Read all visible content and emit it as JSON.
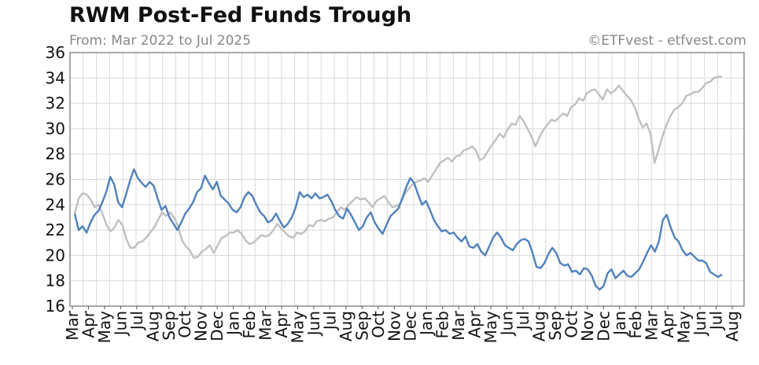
{
  "chart_data": {
    "type": "line",
    "title": "RWM Post-Fed Funds Trough",
    "subtitle": "From: Mar 2022 to Jul 2025",
    "credit": "©ETFvest - etfvest.com",
    "xlabel": "",
    "ylabel": "",
    "ylim": [
      16,
      36
    ],
    "yticks": [
      16,
      18,
      20,
      22,
      24,
      26,
      28,
      30,
      32,
      34,
      36
    ],
    "grid": true,
    "x_ticks": [
      "Mar",
      "Apr",
      "May",
      "Jun",
      "Jul",
      "Aug",
      "Sep",
      "Oct",
      "Nov",
      "Dec",
      "Jan",
      "Feb",
      "Mar",
      "Apr",
      "May",
      "Jun",
      "Jul",
      "Aug",
      "Sep",
      "Oct",
      "Nov",
      "Dec",
      "Jan",
      "Feb",
      "Mar",
      "Apr",
      "May",
      "Jun",
      "Jul",
      "Aug",
      "Sep",
      "Oct",
      "Nov",
      "Dec",
      "Jan",
      "Feb",
      "Mar",
      "Apr",
      "May",
      "Jun",
      "Jul",
      "Aug"
    ],
    "series": [
      {
        "color": "#4f81bd",
        "values": [
          23.3,
          22.0,
          22.3,
          21.8,
          22.6,
          23.2,
          23.5,
          24.2,
          25.0,
          26.2,
          25.6,
          24.2,
          23.8,
          24.8,
          25.9,
          26.8,
          26.1,
          25.7,
          25.4,
          25.8,
          25.5,
          24.5,
          23.6,
          23.9,
          23.0,
          22.5,
          22.0,
          22.6,
          23.3,
          23.7,
          24.2,
          25.0,
          25.3,
          26.3,
          25.7,
          25.2,
          25.8,
          24.7,
          24.4,
          24.1,
          23.6,
          23.4,
          23.8,
          24.6,
          25.0,
          24.7,
          24.0,
          23.4,
          23.1,
          22.6,
          22.8,
          23.3,
          22.7,
          22.2,
          22.5,
          23.0,
          23.8,
          25.0,
          24.6,
          24.8,
          24.5,
          24.9,
          24.5,
          24.6,
          24.8,
          24.3,
          23.6,
          23.1,
          22.9,
          23.7,
          23.2,
          22.6,
          22.0,
          22.3,
          23.0,
          23.4,
          22.6,
          22.1,
          21.7,
          22.4,
          23.1,
          23.4,
          23.7,
          24.5,
          25.4,
          26.1,
          25.7,
          24.8,
          24.0,
          24.3,
          23.6,
          22.8,
          22.3,
          21.9,
          22.0,
          21.7,
          21.8,
          21.4,
          21.1,
          21.5,
          20.7,
          20.6,
          20.9,
          20.3,
          20.0,
          20.7,
          21.4,
          21.8,
          21.4,
          20.8,
          20.6,
          20.4,
          20.9,
          21.2,
          21.3,
          21.1,
          20.2,
          19.1,
          19.0,
          19.4,
          20.1,
          20.6,
          20.2,
          19.4,
          19.2,
          19.3,
          18.7,
          18.8,
          18.5,
          19.0,
          18.9,
          18.4,
          17.6,
          17.3,
          17.6,
          18.6,
          18.9,
          18.2,
          18.5,
          18.8,
          18.4,
          18.3,
          18.6,
          18.9,
          19.5,
          20.2,
          20.8,
          20.3,
          21.1,
          22.8,
          23.2,
          22.2,
          21.4,
          21.1,
          20.4,
          20.0,
          20.2,
          19.9,
          19.6,
          19.6,
          19.4,
          18.7,
          18.5,
          18.3,
          18.5
        ]
      },
      {
        "color": "#c0c0c0",
        "values": [
          23.3,
          24.5,
          24.9,
          24.8,
          24.4,
          23.8,
          24.0,
          23.3,
          22.4,
          21.9,
          22.2,
          22.8,
          22.4,
          21.3,
          20.6,
          20.6,
          21.0,
          21.1,
          21.4,
          21.8,
          22.2,
          22.8,
          23.4,
          23.1,
          23.4,
          23.0,
          22.3,
          21.2,
          20.7,
          20.4,
          19.8,
          19.9,
          20.3,
          20.5,
          20.8,
          20.2,
          20.8,
          21.4,
          21.5,
          21.8,
          21.8,
          22.0,
          21.7,
          21.2,
          20.9,
          21.0,
          21.3,
          21.6,
          21.5,
          21.6,
          22.0,
          22.5,
          22.1,
          21.8,
          21.5,
          21.4,
          21.8,
          21.7,
          21.9,
          22.4,
          22.3,
          22.7,
          22.8,
          22.7,
          22.9,
          23.0,
          23.4,
          23.8,
          23.6,
          24.0,
          24.3,
          24.6,
          24.4,
          24.5,
          24.2,
          23.8,
          24.3,
          24.5,
          24.7,
          24.2,
          23.8,
          23.9,
          24.1,
          24.8,
          25.2,
          25.6,
          25.8,
          25.9,
          26.1,
          25.8,
          26.3,
          26.8,
          27.3,
          27.5,
          27.7,
          27.4,
          27.8,
          27.9,
          28.3,
          28.4,
          28.6,
          28.3,
          27.5,
          27.7,
          28.2,
          28.7,
          29.1,
          29.6,
          29.3,
          29.9,
          30.4,
          30.3,
          31.0,
          30.6,
          30.0,
          29.4,
          28.6,
          29.3,
          29.9,
          30.3,
          30.7,
          30.6,
          30.9,
          31.2,
          31.0,
          31.7,
          31.9,
          32.4,
          32.2,
          32.8,
          33.0,
          33.1,
          32.7,
          32.3,
          33.1,
          32.8,
          33.0,
          33.4,
          33.0,
          32.6,
          32.3,
          31.7,
          30.8,
          30.1,
          30.4,
          29.6,
          27.3,
          28.3,
          29.4,
          30.3,
          31.0,
          31.5,
          31.7,
          32.0,
          32.6,
          32.7,
          32.9,
          32.9,
          33.2,
          33.6,
          33.7,
          34.0,
          34.1,
          34.1
        ]
      }
    ]
  }
}
